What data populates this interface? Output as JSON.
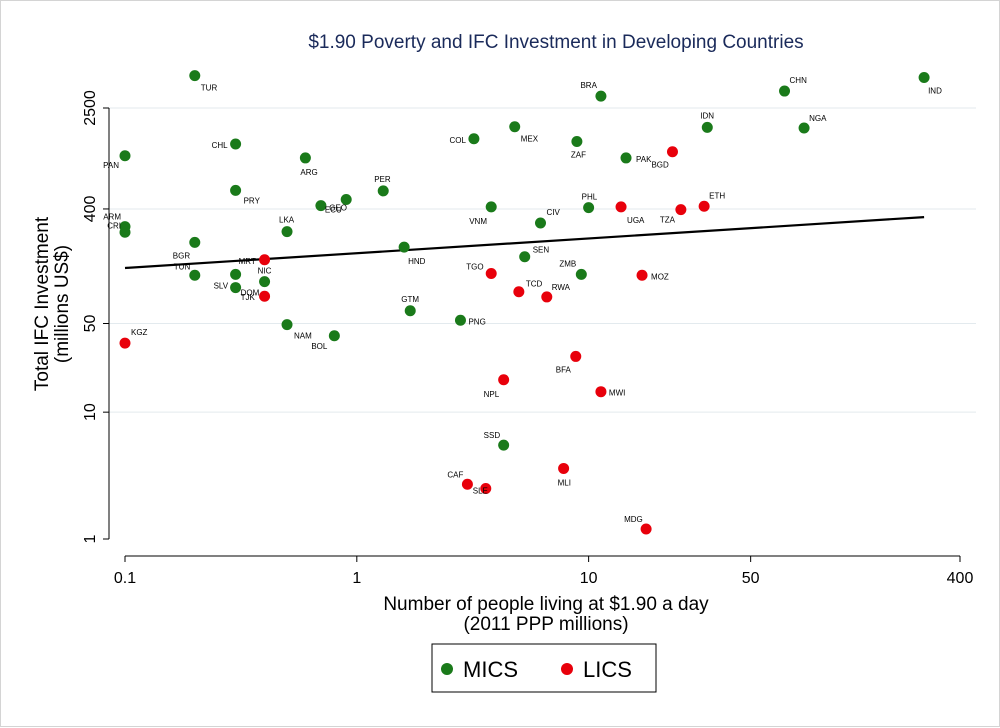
{
  "chart_data": {
    "type": "scatter",
    "title": "$1.90 Poverty and IFC Investment in Developing Countries",
    "xlabel": [
      "Number of people living at $1.90 a day",
      "(2011 PPP millions)"
    ],
    "ylabel": [
      "Total IFC Investment",
      "(millions US$)"
    ],
    "x_scale": "log",
    "y_scale": "log",
    "xlim": [
      0.1,
      400
    ],
    "ylim": [
      1,
      5000
    ],
    "x_ticks": [
      {
        "value": 0.1,
        "label": "0.1"
      },
      {
        "value": 1,
        "label": "1"
      },
      {
        "value": 10,
        "label": "10"
      },
      {
        "value": 50,
        "label": "50"
      },
      {
        "value": 400,
        "label": "400"
      }
    ],
    "y_ticks": [
      {
        "value": 1,
        "label": "1"
      },
      {
        "value": 10,
        "label": "10"
      },
      {
        "value": 50,
        "label": "50"
      },
      {
        "value": 400,
        "label": "400"
      },
      {
        "value": 2500,
        "label": "2500"
      }
    ],
    "gridlines": "horizontal",
    "legend_position": "bottom",
    "fit_line": {
      "x": [
        0.1,
        280
      ],
      "y": [
        137,
        345
      ]
    },
    "series": [
      {
        "name": "MICS",
        "color": "#1a7a1a",
        "points": [
          {
            "label": "TUR",
            "x": 0.2,
            "y": 4500
          },
          {
            "label": "BRA",
            "x": 11.3,
            "y": 3100
          },
          {
            "label": "CHN",
            "x": 70,
            "y": 3400
          },
          {
            "label": "IND",
            "x": 280,
            "y": 4350
          },
          {
            "label": "PAN",
            "x": 0.1,
            "y": 1050
          },
          {
            "label": "CHL",
            "x": 0.3,
            "y": 1300
          },
          {
            "label": "ARG",
            "x": 0.6,
            "y": 1010
          },
          {
            "label": "COL",
            "x": 3.2,
            "y": 1430
          },
          {
            "label": "MEX",
            "x": 4.8,
            "y": 1780
          },
          {
            "label": "ZAF",
            "x": 8.9,
            "y": 1360
          },
          {
            "label": "PAK",
            "x": 14.5,
            "y": 1010
          },
          {
            "label": "IDN",
            "x": 32.5,
            "y": 1760
          },
          {
            "label": "NGA",
            "x": 85,
            "y": 1740
          },
          {
            "label": "PRY",
            "x": 0.3,
            "y": 560
          },
          {
            "label": "ECU",
            "x": 0.7,
            "y": 425
          },
          {
            "label": "GEO",
            "x": 0.9,
            "y": 475
          },
          {
            "label": "PER",
            "x": 1.3,
            "y": 555
          },
          {
            "label": "VNM",
            "x": 3.8,
            "y": 415
          },
          {
            "label": "PHL",
            "x": 10,
            "y": 410
          },
          {
            "label": "CIV",
            "x": 6.2,
            "y": 310
          },
          {
            "label": "ARM",
            "x": 0.1,
            "y": 290
          },
          {
            "label": "CRI",
            "x": 0.1,
            "y": 262
          },
          {
            "label": "LKA",
            "x": 0.5,
            "y": 265
          },
          {
            "label": "BGR",
            "x": 0.2,
            "y": 218
          },
          {
            "label": "HND",
            "x": 1.6,
            "y": 200
          },
          {
            "label": "SEN",
            "x": 5.3,
            "y": 168
          },
          {
            "label": "TUN",
            "x": 0.2,
            "y": 120
          },
          {
            "label": "ZMB",
            "x": 9.3,
            "y": 122
          },
          {
            "label": "NIC",
            "x": 0.4,
            "y": 107
          },
          {
            "label": "DOM",
            "x": 0.3,
            "y": 96
          },
          {
            "label": "SLV",
            "x": 0.3,
            "y": 122
          },
          {
            "label": "GTM",
            "x": 1.7,
            "y": 63
          },
          {
            "label": "PNG",
            "x": 2.8,
            "y": 53
          },
          {
            "label": "NAM",
            "x": 0.5,
            "y": 49
          },
          {
            "label": "BOL",
            "x": 0.8,
            "y": 40
          },
          {
            "label": "SSD",
            "x": 4.3,
            "y": 5.5
          }
        ]
      },
      {
        "name": "LICS",
        "color": "#e8000b",
        "points": [
          {
            "label": "BGD",
            "x": 23,
            "y": 1130
          },
          {
            "label": "UGA",
            "x": 13.8,
            "y": 415
          },
          {
            "label": "TZA",
            "x": 25,
            "y": 395
          },
          {
            "label": "ETH",
            "x": 31.5,
            "y": 420
          },
          {
            "label": "MRT",
            "x": 0.4,
            "y": 159
          },
          {
            "label": "TGO",
            "x": 3.8,
            "y": 124
          },
          {
            "label": "MOZ",
            "x": 17,
            "y": 120
          },
          {
            "label": "TCD",
            "x": 5,
            "y": 89
          },
          {
            "label": "RWA",
            "x": 6.6,
            "y": 81
          },
          {
            "label": "TJK",
            "x": 0.4,
            "y": 82
          },
          {
            "label": "KGZ",
            "x": 0.1,
            "y": 35
          },
          {
            "label": "BFA",
            "x": 8.8,
            "y": 27.5
          },
          {
            "label": "NPL",
            "x": 4.3,
            "y": 18
          },
          {
            "label": "MWI",
            "x": 11.3,
            "y": 14.5
          },
          {
            "label": "MLI",
            "x": 7.8,
            "y": 3.6
          },
          {
            "label": "CAF",
            "x": 3.0,
            "y": 2.7
          },
          {
            "label": "SLE",
            "x": 3.6,
            "y": 2.5
          },
          {
            "label": "MDG",
            "x": 17.7,
            "y": 1.2
          }
        ]
      }
    ]
  }
}
